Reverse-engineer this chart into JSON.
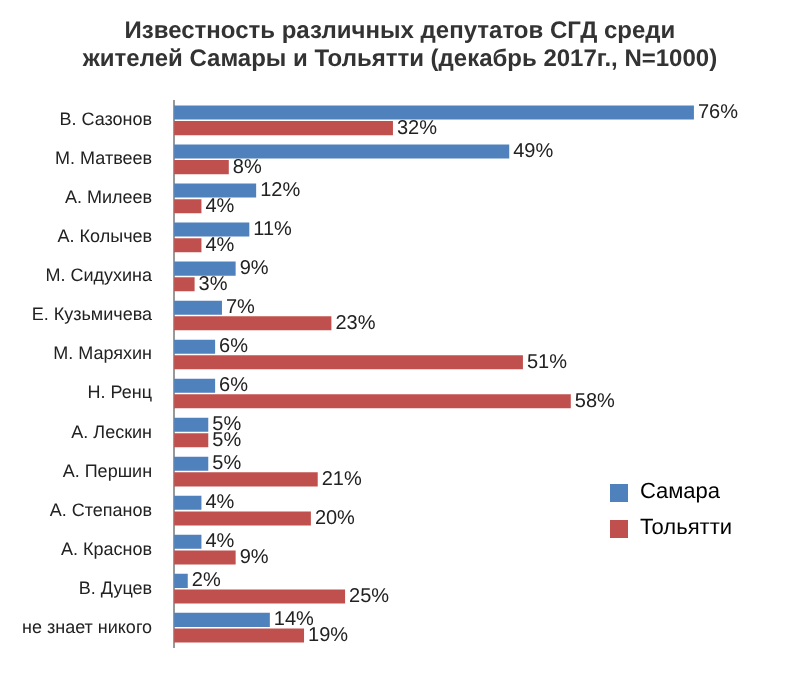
{
  "chart_data": {
    "type": "bar",
    "orientation": "horizontal",
    "title": "Известность различных депутатов СГД среди жителей Самары и Тольятти (декабрь 2017г., N=1000)",
    "categories": [
      "В. Сазонов",
      "М. Матвеев",
      "А. Милеев",
      "А. Колычев",
      "М. Сидухина",
      "Е. Кузьмичева",
      "М. Маряхин",
      "Н. Ренц",
      "А. Лескин",
      "А. Першин",
      "А. Степанов",
      "А. Краснов",
      "В. Дуцев",
      "не знает никого"
    ],
    "series": [
      {
        "name": "Самара",
        "color": "#4f81bd",
        "values": [
          76,
          49,
          12,
          11,
          9,
          7,
          6,
          6,
          5,
          5,
          4,
          4,
          2,
          14
        ],
        "value_labels": [
          "76%",
          "49%",
          "12%",
          "11%",
          "9%",
          "7%",
          "6%",
          "6%",
          "5%",
          "5%",
          "4%",
          "4%",
          "2%",
          "14%"
        ]
      },
      {
        "name": "Тольятти",
        "color": "#c0504d",
        "values": [
          32,
          8,
          4,
          4,
          3,
          23,
          51,
          58,
          5,
          21,
          20,
          9,
          25,
          19
        ],
        "value_labels": [
          "32%",
          "8%",
          "4%",
          "4%",
          "3%",
          "23%",
          "51%",
          "58%",
          "5%",
          "21%",
          "20%",
          "9%",
          "25%",
          "19%"
        ]
      }
    ],
    "legend": "bottom right"
  }
}
